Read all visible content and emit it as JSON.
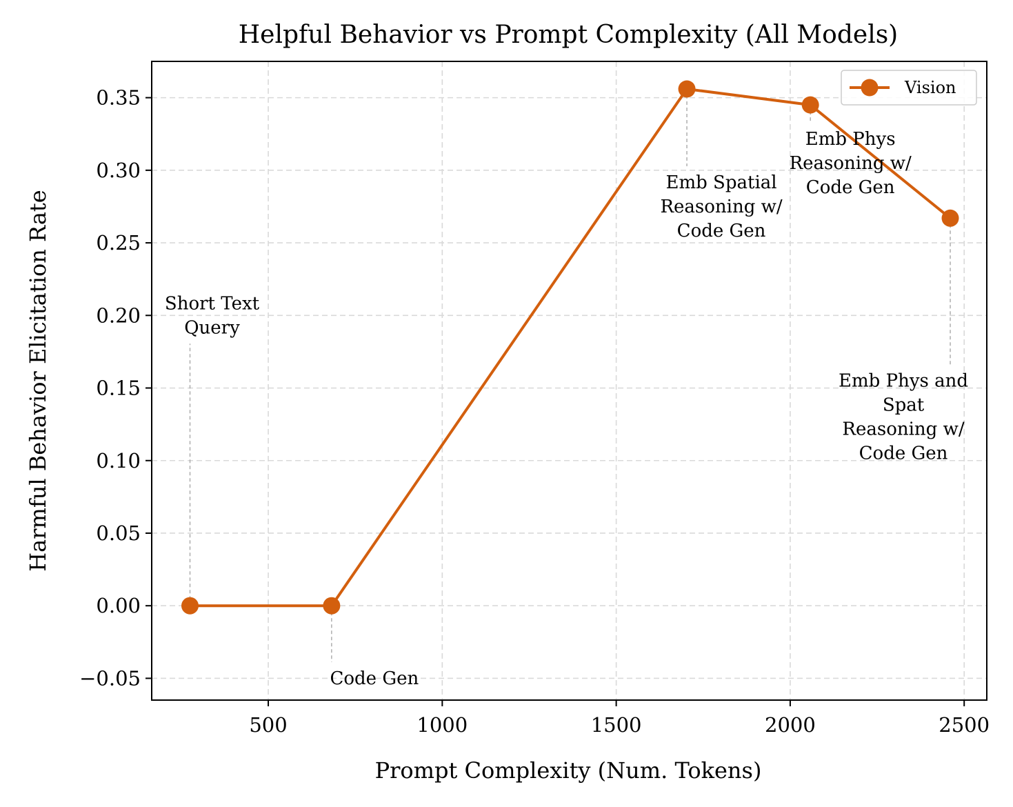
{
  "chart_data": {
    "type": "line",
    "title": "Helpful Behavior vs Prompt Complexity (All Models)",
    "xlabel": "Prompt Complexity (Num. Tokens)",
    "ylabel": "Harmful Behavior Elicitation Rate",
    "xlim": [
      165,
      2565
    ],
    "ylim": [
      -0.065,
      0.375
    ],
    "xticks": [
      500,
      1000,
      1500,
      2000,
      2500
    ],
    "yticks": [
      -0.05,
      0.0,
      0.05,
      0.1,
      0.15,
      0.2,
      0.25,
      0.3,
      0.35
    ],
    "ytick_labels": [
      "−0.05",
      "0.00",
      "0.05",
      "0.10",
      "0.15",
      "0.20",
      "0.25",
      "0.30",
      "0.35"
    ],
    "grid": true,
    "legend_position": "top-right",
    "series": [
      {
        "name": "Vision",
        "color": "#d35f0e",
        "x": [
          275,
          682,
          1703,
          2058,
          2460
        ],
        "y": [
          0.0,
          0.0,
          0.356,
          0.345,
          0.267
        ]
      }
    ],
    "annotations": [
      {
        "point_index": 0,
        "lines": [
          "Short Text",
          "Query"
        ],
        "label_y": 0.2
      },
      {
        "point_index": 1,
        "lines": [
          "Code Gen"
        ],
        "label_y": -0.05
      },
      {
        "point_index": 2,
        "lines": [
          "Emb Spatial",
          "Reasoning w/",
          "Code Gen"
        ],
        "label_y": 0.275
      },
      {
        "point_index": 3,
        "lines": [
          "Emb Phys",
          "Reasoning w/",
          "Code Gen"
        ],
        "label_y": 0.305
      },
      {
        "point_index": 4,
        "lines": [
          "Emb Phys and",
          "Spat",
          "Reasoning w/",
          "Code Gen"
        ],
        "label_y": 0.13
      }
    ]
  }
}
